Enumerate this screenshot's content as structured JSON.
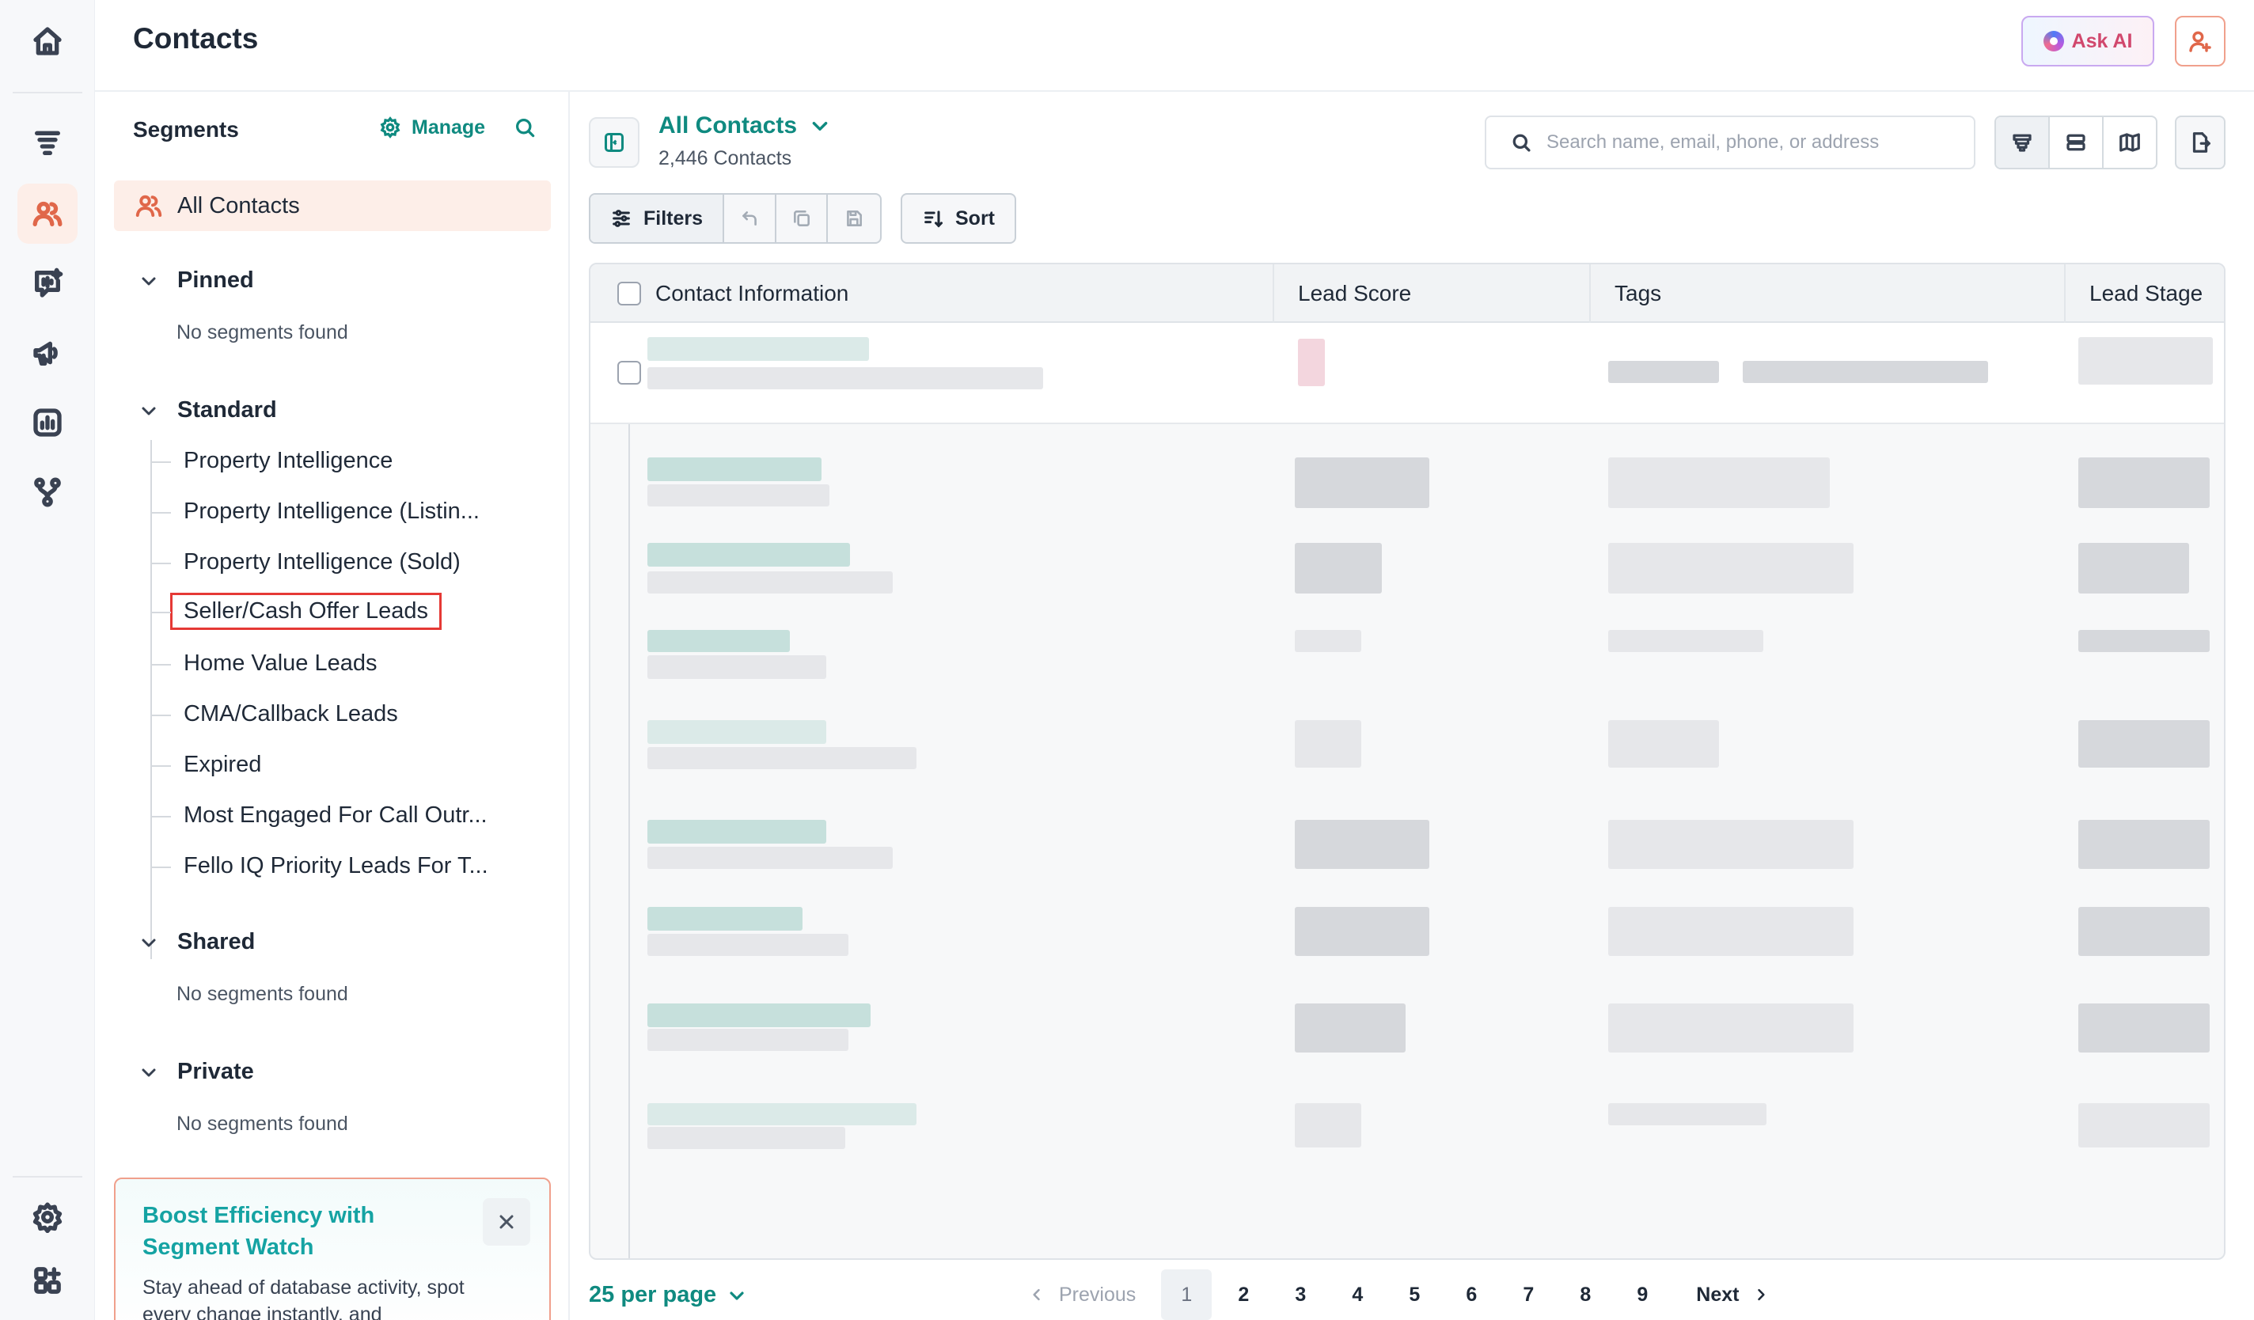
{
  "header": {
    "title": "Contacts",
    "ask_ai_label": "Ask AI"
  },
  "rail": {
    "icons": [
      "home-icon",
      "funnel-icon",
      "users-icon",
      "chat-ai-icon",
      "megaphone-icon",
      "analytics-icon",
      "workflow-icon",
      "settings-icon",
      "apps-icon"
    ],
    "active": "users-icon"
  },
  "segments": {
    "title": "Segments",
    "manage_label": "Manage",
    "all_contacts": "All Contacts",
    "pinned": {
      "title": "Pinned",
      "empty": "No segments found"
    },
    "standard": {
      "title": "Standard",
      "items": [
        "Property Intelligence",
        "Property Intelligence (Listin...",
        "Property Intelligence (Sold)",
        "Seller/Cash Offer Leads",
        "Home Value Leads",
        "CMA/Callback Leads",
        "Expired",
        "Most Engaged For Call Outr...",
        "Fello IQ Priority Leads For T..."
      ]
    },
    "shared": {
      "title": "Shared",
      "empty": "No segments found"
    },
    "private": {
      "title": "Private",
      "empty": "No segments found"
    }
  },
  "promo": {
    "title": "Boost Efficiency with Segment Watch",
    "body": "Stay ahead of database activity, spot every change instantly, and"
  },
  "view": {
    "title": "All Contacts",
    "count": "2,446 Contacts"
  },
  "search": {
    "placeholder": "Search name, email, phone, or address"
  },
  "toolbar": {
    "filters_label": "Filters",
    "sort_label": "Sort"
  },
  "table": {
    "columns": [
      "Contact Information",
      "Lead Score",
      "Tags",
      "Lead Stage"
    ]
  },
  "pagination": {
    "per_page": "25 per page",
    "previous": "Previous",
    "next": "Next",
    "pages": [
      "1",
      "2",
      "3",
      "4",
      "5",
      "6",
      "7",
      "8",
      "9"
    ],
    "current": "1"
  },
  "colors": {
    "accent_teal": "#0f8a80",
    "accent_orange": "#e0674a",
    "highlight_red": "#e53935"
  }
}
